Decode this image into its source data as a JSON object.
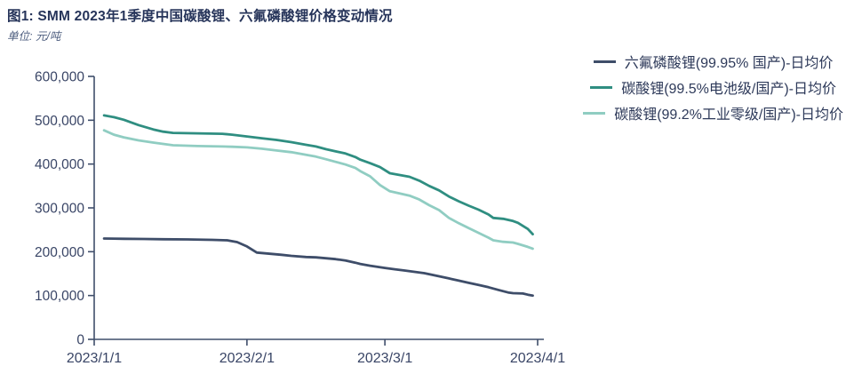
{
  "figure": {
    "title": "图1:  SMM 2023年1季度中国碳酸锂、六氟磷酸锂价格变动情况",
    "unit_label": "单位: 元/吨"
  },
  "colors": {
    "title": "#26345a",
    "subtitle": "#4f5f80",
    "axis": "#3f4e6b",
    "tick_label": "#394566",
    "legend_text": "#2e3a5a",
    "background": "#ffffff"
  },
  "chart_data": {
    "type": "line",
    "title": "SMM 2023年1季度中国碳酸锂、六氟磷酸锂价格变动情况",
    "unit": "元/吨",
    "grid": false,
    "legend_position": "top-right",
    "x_axis": {
      "tick_labels": [
        "2023/1/1",
        "2023/2/1",
        "2023/3/1",
        "2023/4/1"
      ],
      "tick_days": [
        0,
        31,
        59,
        90
      ],
      "domain_days": [
        0,
        90
      ]
    },
    "y_axis": {
      "tick_labels": [
        "0",
        "100,000",
        "200,000",
        "300,000",
        "400,000",
        "500,000",
        "600,000"
      ],
      "tick_values": [
        0,
        100000,
        200000,
        300000,
        400000,
        500000,
        600000
      ],
      "range": [
        0,
        600000
      ]
    },
    "series": [
      {
        "name": "六氟磷酸锂(99.95% 国产)-日均价",
        "color": "#3e4d69",
        "points": [
          [
            2,
            230000
          ],
          [
            6,
            229500
          ],
          [
            10,
            229000
          ],
          [
            14,
            228500
          ],
          [
            19,
            228000
          ],
          [
            24,
            227000
          ],
          [
            27,
            226000
          ],
          [
            29,
            222000
          ],
          [
            31,
            212000
          ],
          [
            33,
            198000
          ],
          [
            36,
            195000
          ],
          [
            38,
            193000
          ],
          [
            40,
            190500
          ],
          [
            43,
            188000
          ],
          [
            45,
            187000
          ],
          [
            47,
            185000
          ],
          [
            49,
            183000
          ],
          [
            51,
            180000
          ],
          [
            53,
            175000
          ],
          [
            54,
            172000
          ],
          [
            56,
            168000
          ],
          [
            59,
            163000
          ],
          [
            61,
            160000
          ],
          [
            63,
            157000
          ],
          [
            65,
            154000
          ],
          [
            67,
            151000
          ],
          [
            70,
            144000
          ],
          [
            72,
            139000
          ],
          [
            74,
            134000
          ],
          [
            76,
            129000
          ],
          [
            78,
            124000
          ],
          [
            80,
            119000
          ],
          [
            82,
            113000
          ],
          [
            84,
            107000
          ],
          [
            85,
            105500
          ],
          [
            87,
            104500
          ],
          [
            88,
            102000
          ],
          [
            89,
            100000
          ]
        ]
      },
      {
        "name": "碳酸锂(99.5%电池级/国产)-日均价",
        "color": "#2f8e81",
        "points": [
          [
            2,
            511000
          ],
          [
            4,
            507000
          ],
          [
            6,
            501000
          ],
          [
            9,
            489000
          ],
          [
            12,
            479000
          ],
          [
            14,
            474000
          ],
          [
            16,
            471000
          ],
          [
            21,
            470000
          ],
          [
            26,
            469000
          ],
          [
            28,
            467000
          ],
          [
            31,
            463000
          ],
          [
            34,
            459000
          ],
          [
            37,
            455000
          ],
          [
            40,
            450000
          ],
          [
            43,
            444000
          ],
          [
            45,
            440000
          ],
          [
            47,
            434000
          ],
          [
            49,
            429000
          ],
          [
            51,
            424000
          ],
          [
            53,
            416000
          ],
          [
            54,
            410000
          ],
          [
            56,
            402000
          ],
          [
            58,
            393000
          ],
          [
            60,
            379000
          ],
          [
            62,
            375000
          ],
          [
            64,
            371000
          ],
          [
            66,
            362000
          ],
          [
            68,
            350000
          ],
          [
            70,
            340000
          ],
          [
            72,
            326000
          ],
          [
            74,
            315000
          ],
          [
            76,
            305000
          ],
          [
            78,
            296000
          ],
          [
            80,
            285000
          ],
          [
            81,
            277000
          ],
          [
            83,
            275000
          ],
          [
            85,
            270000
          ],
          [
            86,
            266000
          ],
          [
            88,
            252000
          ],
          [
            89,
            240000
          ]
        ]
      },
      {
        "name": "碳酸锂(99.2%工业零级/国产)-日均价",
        "color": "#90cdc2",
        "points": [
          [
            2,
            477000
          ],
          [
            4,
            467000
          ],
          [
            6,
            461000
          ],
          [
            9,
            454000
          ],
          [
            12,
            449000
          ],
          [
            14,
            446000
          ],
          [
            16,
            443000
          ],
          [
            21,
            441000
          ],
          [
            26,
            440000
          ],
          [
            28,
            439500
          ],
          [
            31,
            438000
          ],
          [
            34,
            435000
          ],
          [
            37,
            431000
          ],
          [
            40,
            427000
          ],
          [
            43,
            421000
          ],
          [
            45,
            417000
          ],
          [
            47,
            411000
          ],
          [
            49,
            405000
          ],
          [
            51,
            399000
          ],
          [
            53,
            391000
          ],
          [
            54,
            384000
          ],
          [
            56,
            372000
          ],
          [
            58,
            352000
          ],
          [
            60,
            338000
          ],
          [
            62,
            333000
          ],
          [
            64,
            328000
          ],
          [
            66,
            319000
          ],
          [
            68,
            306000
          ],
          [
            70,
            295000
          ],
          [
            72,
            277000
          ],
          [
            74,
            265000
          ],
          [
            76,
            254000
          ],
          [
            78,
            243000
          ],
          [
            80,
            232000
          ],
          [
            81,
            226000
          ],
          [
            83,
            222500
          ],
          [
            85,
            221000
          ],
          [
            86,
            218000
          ],
          [
            88,
            211000
          ],
          [
            89,
            207000
          ]
        ]
      }
    ]
  }
}
